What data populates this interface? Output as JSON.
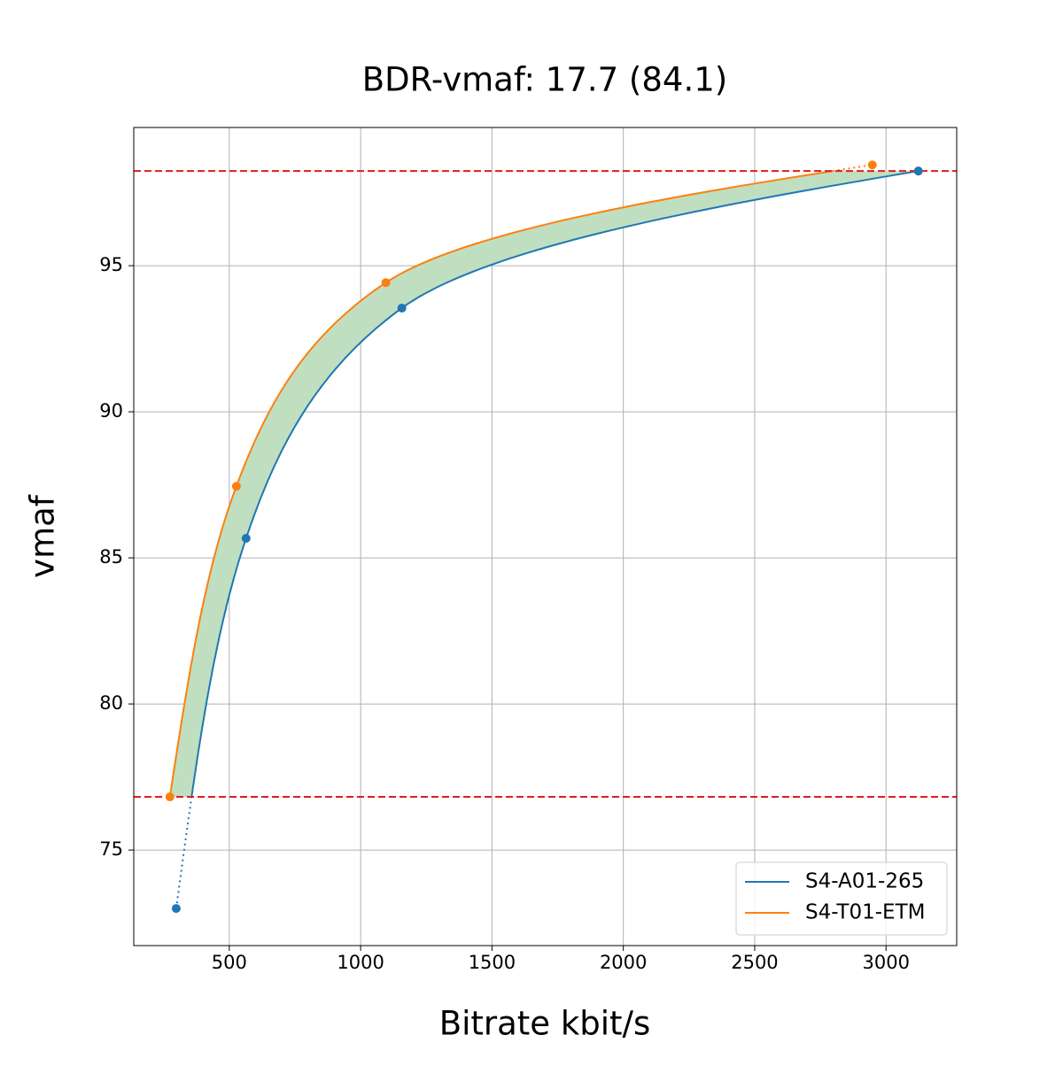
{
  "chart_data": {
    "type": "rd-curve",
    "title": "BDR-vmaf: 17.7 (84.1)",
    "xlabel": "Bitrate kbit/s",
    "ylabel": "vmaf",
    "series": [
      {
        "name": "S4-A01-265",
        "color": "#1f77b4",
        "x": [
          298,
          564,
          1157,
          3123
        ],
        "values": [
          73.0,
          85.67,
          93.55,
          98.24
        ]
      },
      {
        "name": "S4-T01-ETM",
        "color": "#ff7f0e",
        "x": [
          274,
          527,
          1096,
          2948
        ],
        "values": [
          76.82,
          87.45,
          94.42,
          98.45
        ]
      }
    ],
    "hlines": [
      76.82,
      98.24
    ],
    "hline_color": "#e41a1c",
    "fill_color": "#c0dfc0",
    "xlim": [
      136.4,
      3269
    ],
    "ylim": [
      71.73,
      99.73
    ],
    "xticks": [
      500,
      1000,
      1500,
      2000,
      2500,
      3000
    ],
    "yticks": [
      75,
      80,
      85,
      90,
      95
    ],
    "grid": true,
    "legend": "lower right"
  }
}
